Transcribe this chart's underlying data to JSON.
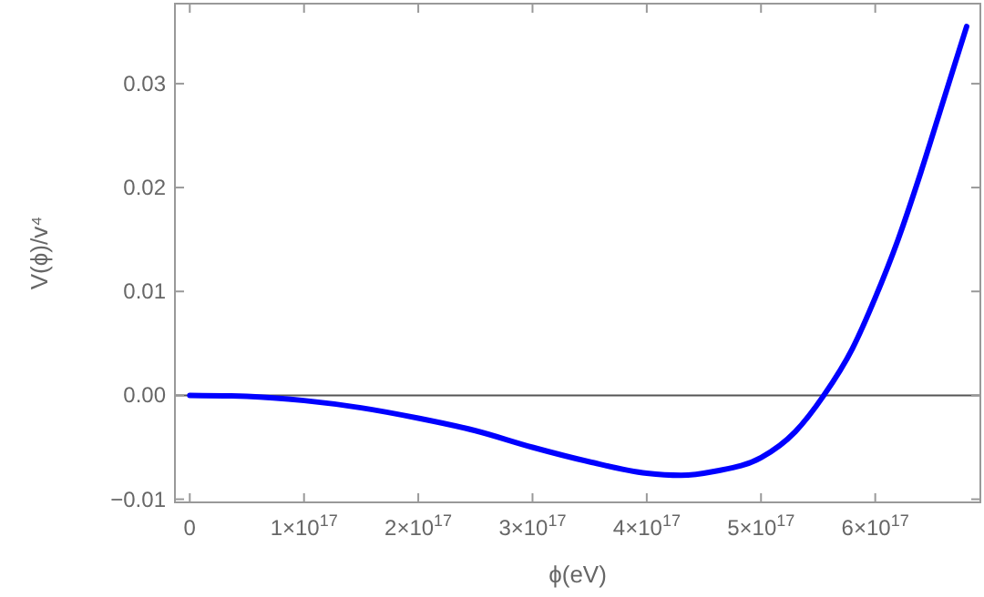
{
  "chart_data": {
    "type": "line",
    "xlabel": "ϕ(eV)",
    "ylabel": "V(ϕ)/v⁴",
    "x": [
      0,
      5e+16,
      1e+17,
      1.5e+17,
      2e+17,
      2.5e+17,
      3e+17,
      3.5e+17,
      4e+17,
      4.3e+17,
      4.6e+17,
      5e+17,
      5.3e+17,
      5.55e+17,
      5.8e+17,
      6e+17,
      6.2e+17,
      6.4e+17,
      6.6e+17,
      6.8e+17
    ],
    "series": [
      {
        "color": "#0000ff",
        "values": [
          0,
          -0.0001,
          -0.0005,
          -0.0012,
          -0.0022,
          -0.0034,
          -0.005,
          -0.0064,
          -0.0075,
          -0.0077,
          -0.0073,
          -0.006,
          -0.0035,
          0,
          0.0045,
          0.0094,
          0.015,
          0.0215,
          0.0285,
          0.0355
        ]
      }
    ],
    "xlim": [
      -1.3e+16,
      6.92e+17
    ],
    "ylim": [
      -0.0103,
      0.0377
    ],
    "xticks": [
      0,
      {
        "value": 1e+17,
        "label": "1×10$^{17}$"
      },
      {
        "value": 2e+17,
        "label": "2×10$^{17}$"
      },
      {
        "value": 3e+17,
        "label": "3×10$^{17}$"
      },
      {
        "value": 4e+17,
        "label": "4×10$^{17}$"
      },
      {
        "value": 5e+17,
        "label": "5×10$^{17}$"
      },
      {
        "value": 6e+17,
        "label": "6×10$^{17}$"
      }
    ],
    "yticks": [
      {
        "value": -0.01,
        "label": "−0.01"
      },
      {
        "value": 0,
        "label": "0.00"
      },
      {
        "value": 0.01,
        "label": "0.01"
      },
      {
        "value": 0.02,
        "label": "0.02"
      },
      {
        "value": 0.03,
        "label": "0.03"
      }
    ],
    "ref_lines": [
      {
        "axis": "y",
        "value": 0,
        "color": "#555555"
      }
    ],
    "grid": false,
    "marker": "none",
    "line_style": "solid"
  }
}
